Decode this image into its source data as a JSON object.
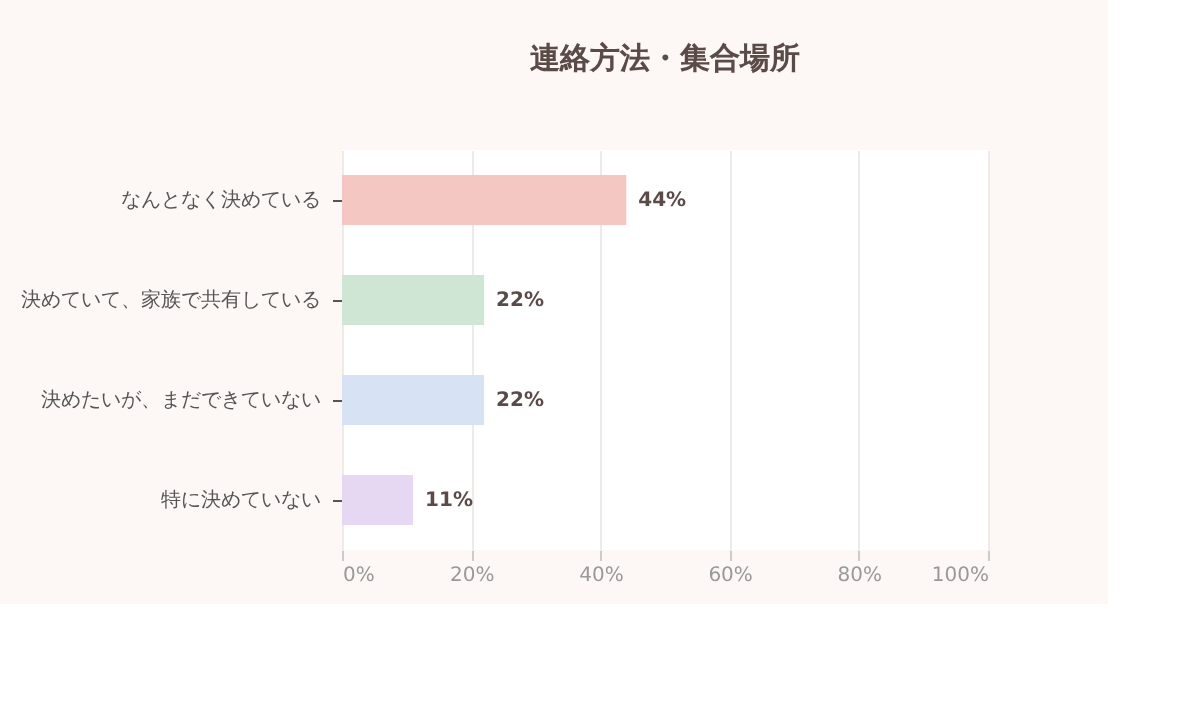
{
  "chart_data": {
    "type": "bar",
    "orientation": "horizontal",
    "title": "連絡方法・集合場所",
    "categories": [
      "なんとなく決めている",
      "決めていて、家族で共有している",
      "決めたいが、まだできていない",
      "特に決めていない"
    ],
    "values": [
      44,
      22,
      22,
      11
    ],
    "colors": [
      "#f4c7c3",
      "#d0e6d5",
      "#d7e2f4",
      "#e6d8f2"
    ],
    "value_labels": [
      "44%",
      "22%",
      "22%",
      "11%"
    ],
    "xlim": [
      0,
      100
    ],
    "xticks": [
      {
        "value": 0,
        "label": "0%"
      },
      {
        "value": 20,
        "label": "20%"
      },
      {
        "value": 40,
        "label": "40%"
      },
      {
        "value": 60,
        "label": "60%"
      },
      {
        "value": 80,
        "label": "80%"
      },
      {
        "value": 100,
        "label": "100%"
      }
    ],
    "grid": "x"
  }
}
